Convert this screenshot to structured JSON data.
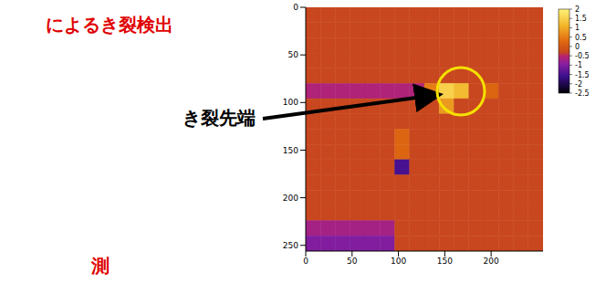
{
  "slide": {
    "heading": "によるき裂検出",
    "label": "き裂先端",
    "footer": "測"
  },
  "chart_data": {
    "type": "heatmap",
    "xlim": [
      0,
      256
    ],
    "ylim": [
      0,
      256
    ],
    "xticks": [
      0,
      50,
      100,
      150,
      200
    ],
    "yticks": [
      0,
      50,
      100,
      150,
      200,
      250
    ],
    "cells": [
      [
        -0.3,
        -0.3,
        -0.3,
        -0.3,
        -0.3,
        -0.3,
        -0.3,
        -0.3,
        -0.3,
        -0.3,
        -0.3,
        -0.3,
        -0.3,
        -0.3,
        -0.3,
        -0.3
      ],
      [
        -0.3,
        -0.3,
        -0.3,
        -0.3,
        -0.3,
        -0.3,
        -0.3,
        -0.3,
        -0.3,
        -0.3,
        -0.3,
        -0.3,
        -0.3,
        -0.3,
        -0.3,
        -0.3
      ],
      [
        -0.3,
        -0.3,
        -0.3,
        -0.3,
        -0.3,
        -0.3,
        -0.3,
        -0.3,
        -0.3,
        -0.3,
        -0.3,
        -0.3,
        -0.3,
        -0.3,
        -0.3,
        -0.3
      ],
      [
        -0.3,
        -0.3,
        -0.3,
        -0.3,
        -0.3,
        -0.3,
        -0.3,
        -0.3,
        -0.3,
        -0.3,
        -0.3,
        -0.3,
        -0.3,
        -0.3,
        -0.3,
        -0.3
      ],
      [
        -0.3,
        -0.3,
        -0.3,
        -0.3,
        -0.3,
        -0.3,
        -0.3,
        -0.3,
        -0.3,
        -0.3,
        -0.3,
        -0.3,
        -0.3,
        -0.3,
        -0.3,
        -0.3
      ],
      [
        -0.6,
        -0.6,
        -0.6,
        -0.6,
        -0.6,
        -0.6,
        -0.6,
        -0.6,
        0.5,
        1.5,
        1.2,
        -0.3,
        0.2,
        -0.3,
        -0.3,
        -0.3
      ],
      [
        -0.3,
        -0.3,
        -0.3,
        -0.3,
        -0.3,
        -0.3,
        -0.3,
        -0.3,
        -0.3,
        0.8,
        -0.3,
        -0.3,
        -0.3,
        -0.3,
        -0.3,
        -0.3
      ],
      [
        -0.3,
        -0.3,
        -0.3,
        -0.3,
        -0.3,
        -0.3,
        -0.3,
        -0.3,
        -0.3,
        -0.3,
        -0.3,
        -0.3,
        -0.3,
        -0.3,
        -0.3,
        -0.3
      ],
      [
        -0.3,
        -0.3,
        -0.3,
        -0.3,
        -0.3,
        -0.3,
        0.2,
        -0.3,
        -0.3,
        -0.3,
        -0.3,
        -0.3,
        -0.3,
        -0.3,
        -0.3,
        -0.3
      ],
      [
        -0.3,
        -0.3,
        -0.3,
        -0.3,
        -0.3,
        -0.3,
        0.2,
        -0.3,
        -0.3,
        -0.3,
        -0.3,
        -0.3,
        -0.3,
        -0.3,
        -0.3,
        -0.3
      ],
      [
        -0.3,
        -0.3,
        -0.3,
        -0.3,
        -0.3,
        -0.3,
        -1.5,
        -0.3,
        -0.3,
        -0.3,
        -0.3,
        -0.3,
        -0.3,
        -0.3,
        -0.3,
        -0.3
      ],
      [
        -0.3,
        -0.3,
        -0.3,
        -0.3,
        -0.3,
        -0.3,
        -0.3,
        -0.3,
        -0.3,
        -0.3,
        -0.3,
        -0.3,
        -0.3,
        -0.3,
        -0.3,
        -0.3
      ],
      [
        -0.3,
        -0.3,
        -0.3,
        -0.3,
        -0.3,
        -0.3,
        -0.3,
        -0.3,
        -0.3,
        -0.3,
        -0.3,
        -0.3,
        -0.3,
        -0.3,
        -0.3,
        -0.3
      ],
      [
        -0.3,
        -0.3,
        -0.3,
        -0.3,
        -0.3,
        -0.3,
        -0.3,
        -0.3,
        -0.3,
        -0.3,
        -0.3,
        -0.3,
        -0.3,
        -0.3,
        -0.3,
        -0.3
      ],
      [
        -0.7,
        -0.7,
        -0.7,
        -0.7,
        -0.7,
        -0.7,
        -0.3,
        -0.3,
        -0.3,
        -0.3,
        -0.3,
        -0.3,
        -0.3,
        -0.3,
        -0.3,
        -0.3
      ],
      [
        -1.0,
        -1.0,
        -1.0,
        -1.0,
        -1.0,
        -1.0,
        -0.3,
        -0.3,
        -0.3,
        -0.3,
        -0.3,
        -0.3,
        -0.3,
        -0.3,
        -0.3,
        -0.3
      ]
    ],
    "colorbar": {
      "range": [
        -2.5,
        2
      ],
      "ticks": [
        2,
        1.5,
        1,
        0.5,
        0,
        -0.5,
        -1,
        -1.5,
        -2,
        -2.5
      ]
    }
  }
}
